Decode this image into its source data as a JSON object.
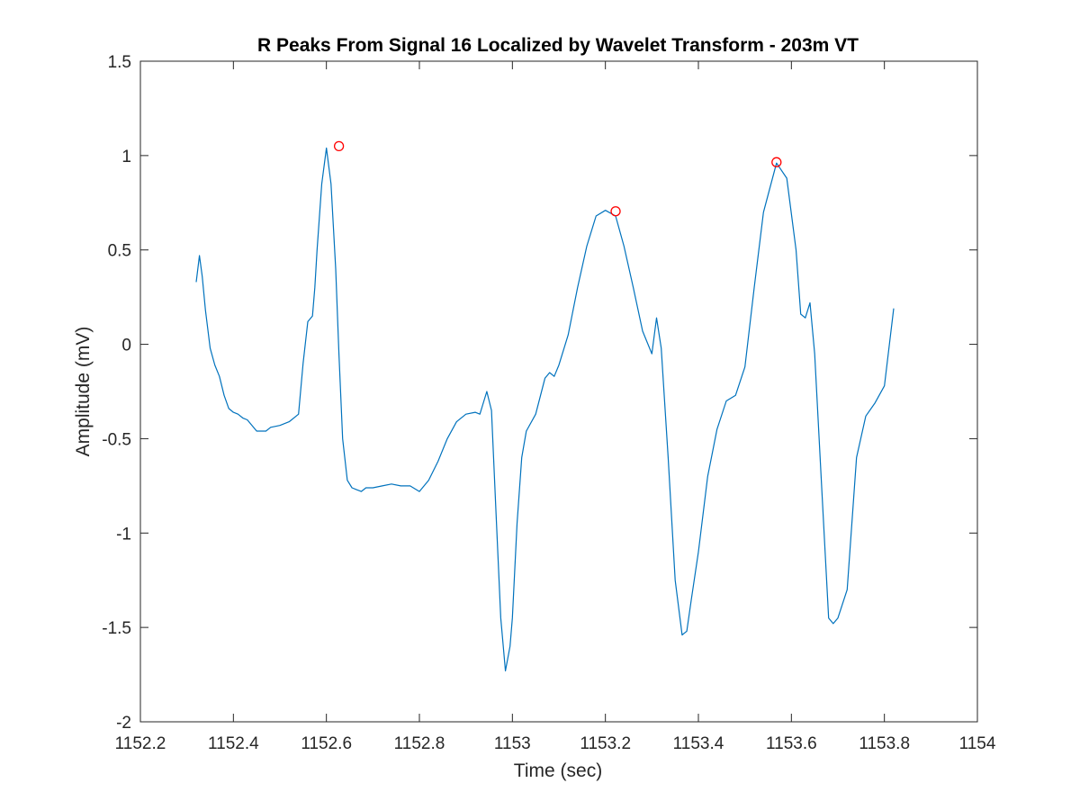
{
  "chart_data": {
    "type": "line",
    "title": "R Peaks From Signal 16 Localized by Wavelet Transform - 203m VT",
    "xlabel": "Time (sec)",
    "ylabel": "Amplitude (mV)",
    "xlim": [
      1152.2,
      1154
    ],
    "ylim": [
      -2,
      1.5
    ],
    "xticks": [
      1152.2,
      1152.4,
      1152.6,
      1152.8,
      1153,
      1153.2,
      1153.4,
      1153.6,
      1153.8,
      1154
    ],
    "xtick_labels": [
      "1152.2",
      "1152.4",
      "1152.6",
      "1152.8",
      "1153",
      "1153.2",
      "1153.4",
      "1153.6",
      "1153.8",
      "1154"
    ],
    "yticks": [
      -2,
      -1.5,
      -1,
      -0.5,
      0,
      0.5,
      1,
      1.5
    ],
    "ytick_labels": [
      "-2",
      "-1.5",
      "-1",
      "-0.5",
      "0",
      "0.5",
      "1",
      "1.5"
    ],
    "grid": false,
    "series": [
      {
        "kind": "line",
        "color": "#0072BD",
        "x": [
          1152.32,
          1152.327,
          1152.333,
          1152.34,
          1152.35,
          1152.36,
          1152.37,
          1152.38,
          1152.39,
          1152.4,
          1152.41,
          1152.42,
          1152.43,
          1152.44,
          1152.45,
          1152.46,
          1152.47,
          1152.48,
          1152.5,
          1152.52,
          1152.54,
          1152.55,
          1152.56,
          1152.57,
          1152.575,
          1152.58,
          1152.59,
          1152.6,
          1152.61,
          1152.62,
          1152.627,
          1152.635,
          1152.645,
          1152.655,
          1152.665,
          1152.675,
          1152.685,
          1152.7,
          1152.72,
          1152.74,
          1152.76,
          1152.78,
          1152.8,
          1152.82,
          1152.84,
          1152.86,
          1152.88,
          1152.9,
          1152.92,
          1152.93,
          1152.945,
          1152.955,
          1152.965,
          1152.975,
          1152.985,
          1152.995,
          1153.0,
          1153.01,
          1153.02,
          1153.03,
          1153.05,
          1153.07,
          1153.08,
          1153.09,
          1153.1,
          1153.12,
          1153.14,
          1153.16,
          1153.18,
          1153.2,
          1153.222,
          1153.24,
          1153.26,
          1153.28,
          1153.3,
          1153.31,
          1153.32,
          1153.335,
          1153.35,
          1153.365,
          1153.375,
          1153.385,
          1153.4,
          1153.42,
          1153.44,
          1153.46,
          1153.48,
          1153.5,
          1153.52,
          1153.54,
          1153.568,
          1153.59,
          1153.61,
          1153.62,
          1153.63,
          1153.64,
          1153.65,
          1153.665,
          1153.68,
          1153.69,
          1153.7,
          1153.72,
          1153.74,
          1153.76,
          1153.78,
          1153.8,
          1153.82
        ],
        "y": [
          0.33,
          0.47,
          0.36,
          0.18,
          -0.02,
          -0.11,
          -0.17,
          -0.27,
          -0.34,
          -0.36,
          -0.37,
          -0.39,
          -0.4,
          -0.43,
          -0.46,
          -0.46,
          -0.46,
          -0.44,
          -0.43,
          -0.41,
          -0.37,
          -0.1,
          0.12,
          0.15,
          0.3,
          0.5,
          0.85,
          1.04,
          0.85,
          0.4,
          -0.05,
          -0.5,
          -0.72,
          -0.76,
          -0.77,
          -0.78,
          -0.76,
          -0.76,
          -0.75,
          -0.74,
          -0.75,
          -0.75,
          -0.78,
          -0.72,
          -0.62,
          -0.5,
          -0.41,
          -0.37,
          -0.36,
          -0.37,
          -0.25,
          -0.35,
          -0.9,
          -1.45,
          -1.73,
          -1.6,
          -1.45,
          -0.95,
          -0.6,
          -0.46,
          -0.37,
          -0.18,
          -0.15,
          -0.17,
          -0.11,
          0.05,
          0.3,
          0.52,
          0.68,
          0.71,
          0.68,
          0.52,
          0.3,
          0.07,
          -0.05,
          0.14,
          -0.02,
          -0.6,
          -1.25,
          -1.54,
          -1.52,
          -1.35,
          -1.1,
          -0.7,
          -0.45,
          -0.3,
          -0.27,
          -0.12,
          0.3,
          0.7,
          0.96,
          0.88,
          0.5,
          0.16,
          0.14,
          0.22,
          -0.05,
          -0.75,
          -1.45,
          -1.48,
          -1.45,
          -1.3,
          -0.6,
          -0.38,
          -0.31,
          -0.22,
          0.19
        ]
      },
      {
        "kind": "markers",
        "marker": "circle",
        "color": "#FF0000",
        "x": [
          1152.627,
          1153.222,
          1153.568
        ],
        "y": [
          1.05,
          0.705,
          0.965
        ]
      }
    ]
  }
}
